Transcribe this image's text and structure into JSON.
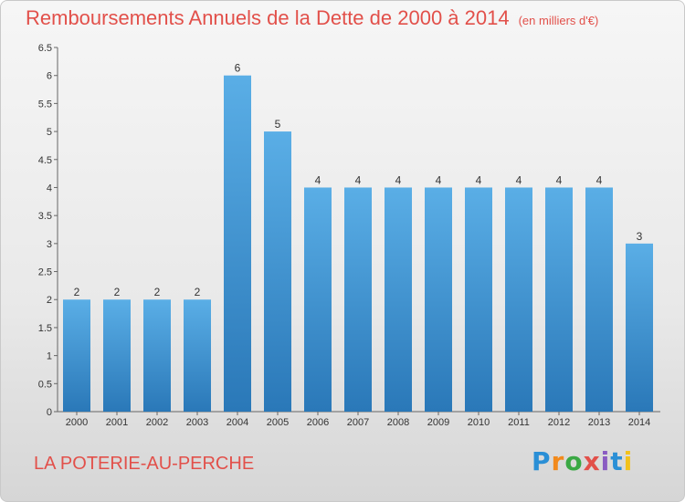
{
  "title": "Remboursements Annuels de la Dette de 2000 à 2014",
  "unit": "(en milliers d'€)",
  "commune": "LA POTERIE-AU-PERCHE",
  "logo": [
    "P",
    "r",
    "o",
    "x",
    "i",
    "t",
    "i"
  ],
  "colors": {
    "bar_top": "#5aaee6",
    "bar_bottom": "#2a78b8",
    "title": "#e2504a"
  },
  "chart_data": {
    "type": "bar",
    "title": "Remboursements Annuels de la Dette de 2000 à 2014",
    "categories": [
      "2000",
      "2001",
      "2002",
      "2003",
      "2004",
      "2005",
      "2006",
      "2007",
      "2008",
      "2009",
      "2010",
      "2011",
      "2012",
      "2013",
      "2014"
    ],
    "values": [
      2,
      2,
      2,
      2,
      6,
      5,
      4,
      4,
      4,
      4,
      4,
      4,
      4,
      4,
      3
    ],
    "ylim": [
      0,
      6.5
    ],
    "yticks": [
      "0",
      "0.5",
      "1",
      "1.5",
      "2",
      "2.5",
      "3",
      "3.5",
      "4",
      "4.5",
      "5",
      "5.5",
      "6",
      "6.5"
    ],
    "grid": false,
    "xlabel": "",
    "ylabel": ""
  }
}
